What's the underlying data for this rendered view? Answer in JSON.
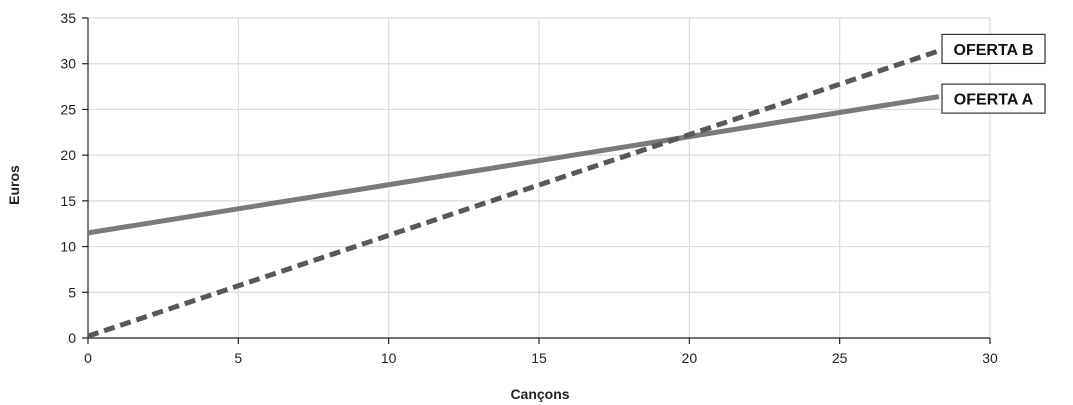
{
  "chart_data": {
    "type": "line",
    "xlabel": "Cançons",
    "ylabel": "Euros",
    "xlim": [
      0,
      30
    ],
    "ylim": [
      0,
      35
    ],
    "xticks": [
      0,
      5,
      10,
      15,
      20,
      25,
      30
    ],
    "yticks": [
      0,
      5,
      10,
      15,
      20,
      25,
      30,
      35
    ],
    "grid": true,
    "legend": "right",
    "series": [
      {
        "name": "OFERTA A",
        "style": "solid",
        "color": "#7a7a7c",
        "x": [
          0,
          28.3
        ],
        "y": [
          11.5,
          26.4
        ]
      },
      {
        "name": "OFERTA B",
        "style": "dashed",
        "color": "#58585a",
        "x": [
          0,
          28.3
        ],
        "y": [
          0.2,
          31.4
        ]
      }
    ]
  }
}
